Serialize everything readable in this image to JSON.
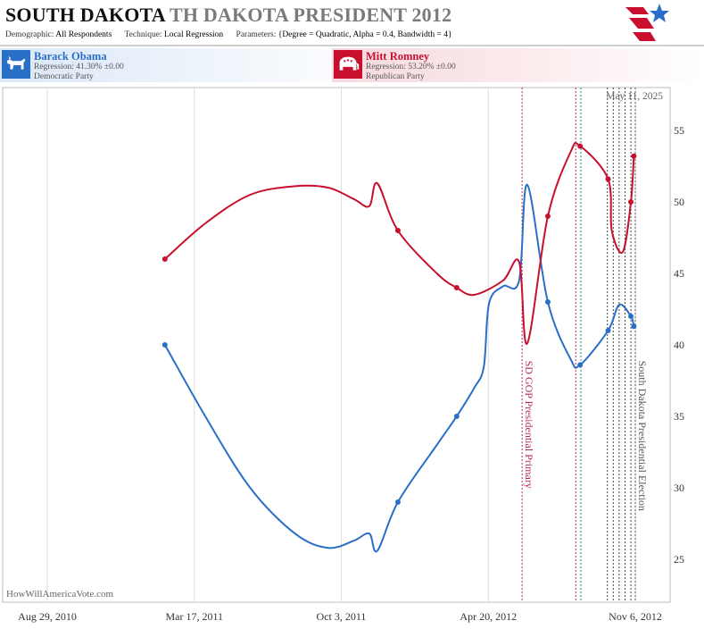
{
  "header": {
    "state": "SOUTH DAKOTA",
    "race": "TH DAKOTA PRESIDENT 2012",
    "demographic_label": "Demographic:",
    "demographic_value": "All Respondents",
    "technique_label": "Technique:",
    "technique_value": "Local Regression",
    "parameters_label": "Parameters:",
    "parameters_value": "{Degree = Quadratic, Alpha = 0.4, Bandwidth = 4}"
  },
  "candidates": [
    {
      "name": "Barack Obama",
      "regression": "Regression: 41.30% ±0.00",
      "party": "Democratic Party",
      "color": "#2a6fc7"
    },
    {
      "name": "Mitt Romney",
      "regression": "Regression: 53.20% ±0.00",
      "party": "Republican Party",
      "color": "#c8102e"
    }
  ],
  "watermark": "HowWillAmericaVote.com",
  "current_date": "May 11, 2025",
  "chart_data": {
    "type": "line",
    "title": "SOUTH DAKOTA TH DAKOTA PRESIDENT 2012",
    "xlabel": "",
    "ylabel": "",
    "x_ticks": [
      "Aug 29, 2010",
      "Mar 17, 2011",
      "Oct 3, 2011",
      "Apr 20, 2012",
      "Nov 6, 2012"
    ],
    "xlim": [
      "2010-08-29",
      "2012-11-06"
    ],
    "ylim": [
      22,
      58
    ],
    "y_ticks": [
      25,
      30,
      35,
      40,
      45,
      50,
      55
    ],
    "grid": "vertical lines at x ticks",
    "series": [
      {
        "name": "Barack Obama",
        "color": "#2a6fc7",
        "curve": [
          [
            "2011-02-05",
            40.0
          ],
          [
            "2011-04-01",
            35.0
          ],
          [
            "2011-06-01",
            30.0
          ],
          [
            "2011-08-01",
            26.8
          ],
          [
            "2011-09-15",
            25.8
          ],
          [
            "2011-10-20",
            26.3
          ],
          [
            "2011-11-10",
            26.8
          ],
          [
            "2011-11-21",
            25.6
          ],
          [
            "2011-12-19",
            29.0
          ],
          [
            "2012-02-10",
            33.0
          ],
          [
            "2012-03-08",
            35.0
          ],
          [
            "2012-04-01",
            37.0
          ],
          [
            "2012-04-14",
            38.5
          ],
          [
            "2012-04-21",
            42.9
          ],
          [
            "2012-05-10",
            44.1
          ],
          [
            "2012-06-01",
            44.5
          ],
          [
            "2012-06-12",
            51.2
          ],
          [
            "2012-07-10",
            43.0
          ],
          [
            "2012-08-10",
            39.0
          ],
          [
            "2012-08-23",
            38.6
          ],
          [
            "2012-09-30",
            41.0
          ],
          [
            "2012-10-15",
            42.8
          ],
          [
            "2012-10-31",
            42.0
          ],
          [
            "2012-11-04",
            41.3
          ]
        ],
        "points": [
          [
            "2011-02-05",
            40.0
          ],
          [
            "2011-12-19",
            29.0
          ],
          [
            "2012-03-08",
            35.0
          ],
          [
            "2012-07-10",
            43.0
          ],
          [
            "2012-08-23",
            38.6
          ],
          [
            "2012-09-30",
            41.0
          ],
          [
            "2012-10-31",
            42.0
          ],
          [
            "2012-11-04",
            41.3
          ]
        ]
      },
      {
        "name": "Mitt Romney",
        "color": "#c8102e",
        "curve": [
          [
            "2011-02-05",
            46.0
          ],
          [
            "2011-04-01",
            48.5
          ],
          [
            "2011-06-01",
            50.5
          ],
          [
            "2011-08-01",
            51.1
          ],
          [
            "2011-09-15",
            51.0
          ],
          [
            "2011-10-20",
            50.2
          ],
          [
            "2011-11-10",
            49.7
          ],
          [
            "2011-11-21",
            51.3
          ],
          [
            "2011-12-19",
            48.0
          ],
          [
            "2012-02-10",
            45.0
          ],
          [
            "2012-03-08",
            44.0
          ],
          [
            "2012-04-01",
            43.5
          ],
          [
            "2012-05-10",
            44.5
          ],
          [
            "2012-06-01",
            45.8
          ],
          [
            "2012-06-12",
            40.1
          ],
          [
            "2012-07-10",
            49.0
          ],
          [
            "2012-08-10",
            53.5
          ],
          [
            "2012-08-23",
            53.9
          ],
          [
            "2012-09-30",
            51.6
          ],
          [
            "2012-10-05",
            48.0
          ],
          [
            "2012-10-20",
            46.5
          ],
          [
            "2012-10-31",
            50.0
          ],
          [
            "2012-11-04",
            53.2
          ]
        ],
        "points": [
          [
            "2011-02-05",
            46.0
          ],
          [
            "2011-12-19",
            48.0
          ],
          [
            "2012-03-08",
            44.0
          ],
          [
            "2012-07-10",
            49.0
          ],
          [
            "2012-08-23",
            53.9
          ],
          [
            "2012-09-30",
            51.6
          ],
          [
            "2012-10-31",
            50.0
          ],
          [
            "2012-11-04",
            53.2
          ]
        ]
      }
    ],
    "events": [
      {
        "date": "2012-06-05",
        "label": "SD GOP Presidential Primary",
        "color": "#b8285a"
      },
      {
        "date": "2012-11-06",
        "label": "South Dakota Presidential Election",
        "color": "#555555"
      }
    ],
    "event_markers": [
      {
        "date": "2012-08-17",
        "color": "#b8285a"
      },
      {
        "date": "2012-08-24",
        "color": "#2a8a8a"
      },
      {
        "date": "2012-09-29",
        "color": "#444444"
      },
      {
        "date": "2012-10-07",
        "color": "#444444"
      },
      {
        "date": "2012-10-15",
        "color": "#444444"
      },
      {
        "date": "2012-10-23",
        "color": "#444444"
      },
      {
        "date": "2012-10-31",
        "color": "#444444"
      }
    ]
  }
}
